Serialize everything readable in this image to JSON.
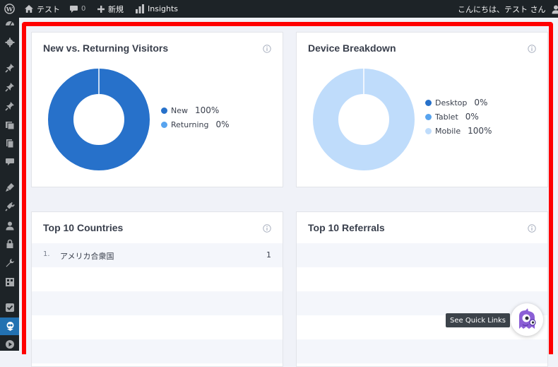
{
  "admin_bar": {
    "site_name": "テスト",
    "comments_count": "0",
    "new_label": "新規",
    "insights_label": "Insights",
    "greeting": "こんにちは、テスト さん",
    "icons": [
      "wordpress-icon",
      "home-icon",
      "comment-icon",
      "plus-icon",
      "bar-chart-icon",
      "user-avatar-icon"
    ]
  },
  "sidebar": {
    "icons": [
      "dashboard-icon",
      "settings-icon",
      "pin-icon",
      "pin-icon",
      "pin-icon",
      "media-icon",
      "pages-icon",
      "comments-icon",
      "appearance-icon",
      "plugins-icon",
      "users-icon",
      "lock-icon",
      "tools-icon",
      "grid-icon",
      "check-icon",
      "insights-icon",
      "play-icon"
    ]
  },
  "cards": {
    "new_vs_returning": {
      "title": "New vs. Returning Visitors",
      "legend": [
        {
          "label": "New",
          "value": "100%",
          "color": "#2771ca"
        },
        {
          "label": "Returning",
          "value": "0%",
          "color": "#58a4ef"
        }
      ],
      "values": [
        100,
        0
      ]
    },
    "device_breakdown": {
      "title": "Device Breakdown",
      "legend": [
        {
          "label": "Desktop",
          "value": "0%",
          "color": "#2771ca"
        },
        {
          "label": "Tablet",
          "value": "0%",
          "color": "#58a4ef"
        },
        {
          "label": "Mobile",
          "value": "100%",
          "color": "#bfdcfb"
        }
      ],
      "values": [
        0,
        0,
        100
      ]
    },
    "top_countries": {
      "title": "Top 10 Countries",
      "rows": [
        {
          "rank": "1.",
          "name": "アメリカ合衆国",
          "value": "1"
        }
      ]
    },
    "top_referrals": {
      "title": "Top 10 Referrals",
      "rows": []
    }
  },
  "quick_links": {
    "label": "See Quick Links"
  },
  "colors": {
    "highlight_border": "#ff0000",
    "admin_bar_bg": "#1d2327",
    "active_menu": "#2271b1"
  }
}
